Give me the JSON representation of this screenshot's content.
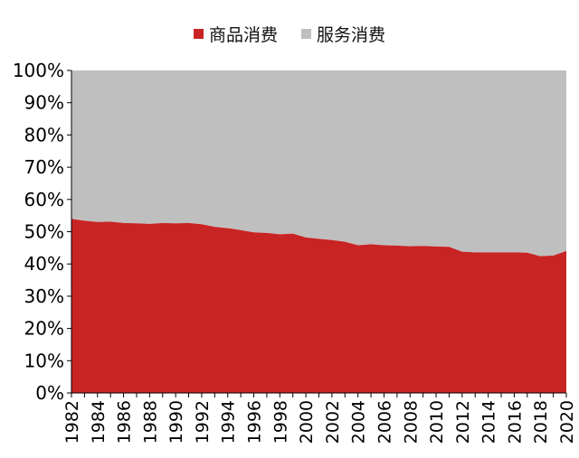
{
  "chart_data": {
    "type": "area",
    "stacked": true,
    "percent": true,
    "x": [
      1982,
      1983,
      1984,
      1985,
      1986,
      1987,
      1988,
      1989,
      1990,
      1991,
      1992,
      1993,
      1994,
      1995,
      1996,
      1997,
      1998,
      1999,
      2000,
      2001,
      2002,
      2003,
      2004,
      2005,
      2006,
      2007,
      2008,
      2009,
      2010,
      2011,
      2012,
      2013,
      2014,
      2015,
      2016,
      2017,
      2018,
      2019,
      2020
    ],
    "x_tick_labels": [
      "1982",
      "1984",
      "1986",
      "1988",
      "1990",
      "1992",
      "1994",
      "1996",
      "1998",
      "2000",
      "2002",
      "2004",
      "2006",
      "2008",
      "2010",
      "2012",
      "2014",
      "2016",
      "2018",
      "2020"
    ],
    "y_tick_labels": [
      "0%",
      "10%",
      "20%",
      "30%",
      "40%",
      "50%",
      "60%",
      "70%",
      "80%",
      "90%",
      "100%"
    ],
    "ylim": [
      0,
      100
    ],
    "series": [
      {
        "name": "商品消费",
        "color": "#c82423",
        "values": [
          54.0,
          53.4,
          53.0,
          53.1,
          52.7,
          52.6,
          52.4,
          52.7,
          52.6,
          52.7,
          52.3,
          51.5,
          51.1,
          50.5,
          49.8,
          49.6,
          49.2,
          49.4,
          48.2,
          47.8,
          47.4,
          46.9,
          45.8,
          46.1,
          45.8,
          45.7,
          45.5,
          45.6,
          45.4,
          45.3,
          43.8,
          43.6,
          43.6,
          43.6,
          43.6,
          43.5,
          42.4,
          42.6,
          44.0
        ]
      },
      {
        "name": "服务消费",
        "color": "#bfbfbf",
        "values": [
          46.0,
          46.6,
          47.0,
          46.9,
          47.3,
          47.4,
          47.6,
          47.3,
          47.4,
          47.3,
          47.7,
          48.5,
          48.9,
          49.5,
          50.2,
          50.4,
          50.8,
          50.6,
          51.8,
          52.2,
          52.6,
          53.1,
          54.2,
          53.9,
          54.2,
          54.3,
          54.5,
          54.4,
          54.6,
          54.7,
          56.2,
          56.4,
          56.4,
          56.4,
          56.4,
          56.5,
          57.6,
          57.4,
          56.0
        ]
      }
    ],
    "legend_position": "top",
    "grid": false
  }
}
